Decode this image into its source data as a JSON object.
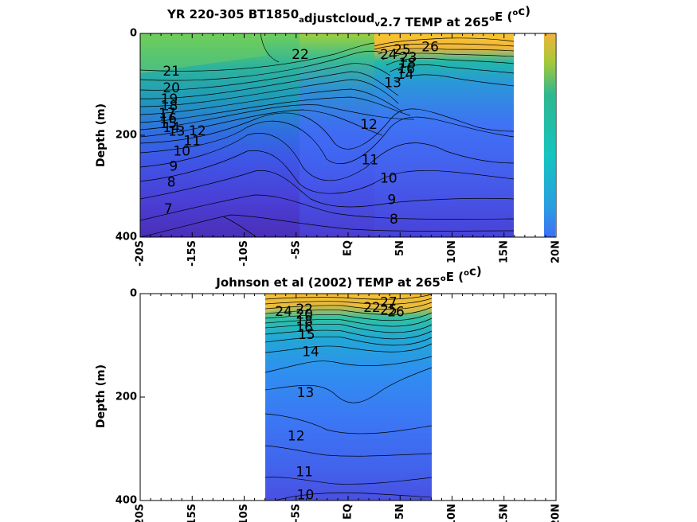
{
  "chart_data": [
    {
      "type": "heatmap",
      "title_parts": [
        "YR 220-305 BT1850",
        "a",
        "djustcloud",
        "v",
        "2.7 TEMP at 265",
        "o",
        "E (",
        "o",
        "c)"
      ],
      "ylabel": "Depth (m)",
      "xlim": [
        -20,
        20
      ],
      "ylim": [
        0,
        400
      ],
      "y_inverted": true,
      "x_ticks": [
        -20,
        -15,
        -10,
        -5,
        0,
        5,
        10,
        15,
        20
      ],
      "x_tick_labels": [
        "-20S",
        "-15S",
        "-10S",
        "-5S",
        "EQ",
        "5N",
        "10N",
        "15N",
        "20N"
      ],
      "y_ticks": [
        0,
        200,
        400
      ],
      "y_tick_labels": [
        "0",
        "200",
        "400"
      ],
      "data_coverage": [
        [
          -20,
          15.5
        ],
        [
          19,
          20
        ]
      ],
      "contour_levels": [
        7,
        8,
        9,
        10,
        11,
        12,
        13,
        14,
        15,
        16,
        17,
        18,
        19,
        20,
        21,
        22,
        23,
        24,
        25,
        26
      ],
      "contour_labels": [
        {
          "text": "21",
          "x": -17.0,
          "y": 75
        },
        {
          "text": "20",
          "x": -17.0,
          "y": 108
        },
        {
          "text": "19",
          "x": -17.2,
          "y": 130
        },
        {
          "text": "18",
          "x": -17.2,
          "y": 143
        },
        {
          "text": "17",
          "x": -17.4,
          "y": 158
        },
        {
          "text": "16",
          "x": -17.3,
          "y": 168
        },
        {
          "text": "15",
          "x": -17.3,
          "y": 178
        },
        {
          "text": "14",
          "x": -17.0,
          "y": 186
        },
        {
          "text": "13",
          "x": -16.5,
          "y": 193
        },
        {
          "text": "12",
          "x": -14.5,
          "y": 192
        },
        {
          "text": "11",
          "x": -15.0,
          "y": 212
        },
        {
          "text": "10",
          "x": -16.0,
          "y": 232
        },
        {
          "text": "9",
          "x": -16.8,
          "y": 262
        },
        {
          "text": "8",
          "x": -17.0,
          "y": 293
        },
        {
          "text": "7",
          "x": -17.3,
          "y": 345
        },
        {
          "text": "22",
          "x": -4.6,
          "y": 42
        },
        {
          "text": "24",
          "x": 3.9,
          "y": 42
        },
        {
          "text": "25",
          "x": 5.2,
          "y": 33
        },
        {
          "text": "26",
          "x": 7.9,
          "y": 27
        },
        {
          "text": "23",
          "x": 5.8,
          "y": 48
        },
        {
          "text": "18",
          "x": 5.7,
          "y": 59
        },
        {
          "text": "16",
          "x": 5.6,
          "y": 70
        },
        {
          "text": "14",
          "x": 5.5,
          "y": 81
        },
        {
          "text": "13",
          "x": 4.3,
          "y": 98
        },
        {
          "text": "12",
          "x": 2.0,
          "y": 180
        },
        {
          "text": "11",
          "x": 2.1,
          "y": 249
        },
        {
          "text": "10",
          "x": 3.9,
          "y": 285
        },
        {
          "text": "9",
          "x": 4.2,
          "y": 327
        },
        {
          "text": "8",
          "x": 4.4,
          "y": 366
        }
      ]
    },
    {
      "type": "heatmap",
      "title_parts": [
        "Johnson et al (2002) TEMP at 265",
        "o",
        "E (",
        "o",
        "c)"
      ],
      "ylabel": "Depth (m)",
      "xlim": [
        -20,
        20
      ],
      "ylim": [
        0,
        400
      ],
      "y_inverted": true,
      "x_ticks": [
        -20,
        -15,
        -10,
        -5,
        0,
        5,
        10,
        15,
        20
      ],
      "x_tick_labels": [
        "-20S",
        "-15S",
        "-10S",
        "-5S",
        "EQ",
        "5N",
        "10N",
        "15N",
        "20N"
      ],
      "y_ticks": [
        0,
        200,
        400
      ],
      "y_tick_labels": [
        "0",
        "200",
        "400"
      ],
      "data_coverage": [
        [
          -8,
          8
        ]
      ],
      "contour_levels": [
        10,
        11,
        12,
        13,
        14,
        15,
        16,
        17,
        18,
        19,
        20,
        21,
        22,
        23,
        24,
        25,
        26,
        27
      ],
      "contour_labels": [
        {
          "text": "24",
          "x": -6.2,
          "y": 35
        },
        {
          "text": "22",
          "x": -4.2,
          "y": 31
        },
        {
          "text": "20",
          "x": -4.2,
          "y": 41
        },
        {
          "text": "18",
          "x": -4.2,
          "y": 54
        },
        {
          "text": "16",
          "x": -4.2,
          "y": 66
        },
        {
          "text": "15",
          "x": -4.0,
          "y": 80
        },
        {
          "text": "14",
          "x": -3.6,
          "y": 113
        },
        {
          "text": "13",
          "x": -4.1,
          "y": 192
        },
        {
          "text": "12",
          "x": -5.0,
          "y": 276
        },
        {
          "text": "11",
          "x": -4.2,
          "y": 345
        },
        {
          "text": "10",
          "x": -4.1,
          "y": 390
        },
        {
          "text": "22",
          "x": 2.3,
          "y": 28
        },
        {
          "text": "25",
          "x": 3.9,
          "y": 32
        },
        {
          "text": "26",
          "x": 4.6,
          "y": 36
        },
        {
          "text": "27",
          "x": 3.9,
          "y": 18
        }
      ]
    }
  ]
}
